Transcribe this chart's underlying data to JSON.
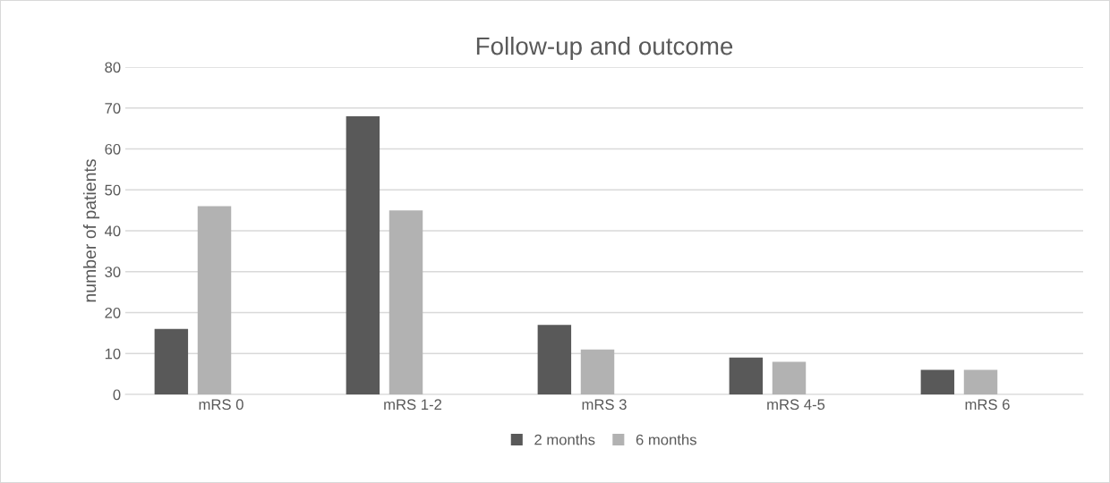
{
  "chart_data": {
    "type": "bar",
    "title": "Follow-up and outcome",
    "ylabel": "number of patients",
    "categories": [
      "mRS 0",
      "mRS 1-2",
      "mRS 3",
      "mRS 4-5",
      "mRS 6"
    ],
    "series": [
      {
        "name": "2 months",
        "color": "#595959",
        "values": [
          16,
          68,
          17,
          9,
          6
        ]
      },
      {
        "name": "6 months",
        "color": "#b2b2b2",
        "values": [
          46,
          45,
          11,
          8,
          6
        ]
      }
    ],
    "ylim": [
      0,
      80
    ],
    "yticks": [
      0,
      10,
      20,
      30,
      40,
      50,
      60,
      70,
      80
    ],
    "grid": "y",
    "legend": "bottom"
  }
}
